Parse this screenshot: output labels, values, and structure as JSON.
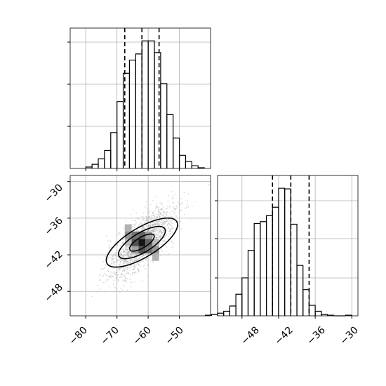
{
  "chart_data": {
    "type": "corner",
    "title": "",
    "parameters": [
      {
        "index": 0,
        "label": "",
        "range": [
          -85,
          -40
        ],
        "quantiles": [
          -67.5,
          -62.0,
          -56.5
        ]
      },
      {
        "index": 1,
        "label": "",
        "range": [
          -52,
          -29
        ],
        "quantiles": [
          -43.0,
          -40.0,
          -37.0
        ]
      }
    ],
    "marginal_0": {
      "x_ticks": [
        -80,
        -70,
        -60,
        -50
      ],
      "bin_edges": [
        -80,
        -78,
        -76,
        -74,
        -72,
        -70,
        -68,
        -66,
        -64,
        -62,
        -60,
        -58,
        -56,
        -54,
        -52,
        -50,
        -48,
        -46,
        -44,
        -42
      ],
      "counts": [
        2,
        6,
        14,
        26,
        52,
        97,
        138,
        157,
        166,
        185,
        185,
        168,
        123,
        78,
        44,
        19,
        10,
        4,
        1
      ]
    },
    "marginal_1": {
      "x_ticks": [
        -48,
        -42,
        -36,
        -30
      ],
      "bin_edges": [
        -54,
        -53,
        -52,
        -51,
        -50,
        -49,
        -48,
        -47,
        -46,
        -45,
        -44,
        -43,
        -42,
        -41,
        -40,
        -39,
        -38,
        -37,
        -36,
        -35,
        -34,
        -33,
        -32,
        -31,
        -30
      ],
      "counts": [
        1,
        2,
        4,
        7,
        15,
        33,
        58,
        100,
        141,
        144,
        153,
        166,
        195,
        194,
        140,
        77,
        40,
        16,
        7,
        2,
        1,
        0,
        0,
        1
      ]
    },
    "joint": {
      "x_ticks": [
        -80,
        -70,
        -60,
        -50
      ],
      "y_ticks": [
        -30,
        -36,
        -42,
        -48
      ],
      "center": [
        -62.0,
        -40.0
      ],
      "correlation": 0.75,
      "contour_levels": [
        "39%",
        "86%",
        "99%"
      ],
      "grid": true
    },
    "line_color": "#000000",
    "grid_color": "#b0b0b0",
    "grid": true
  },
  "axis_text": {
    "bottom_x": [
      "−80",
      "−70",
      "−60",
      "−50"
    ],
    "left_y": [
      "−30",
      "−36",
      "−42",
      "−48"
    ],
    "right_x": [
      "−48",
      "−42",
      "−36",
      "−30"
    ]
  }
}
